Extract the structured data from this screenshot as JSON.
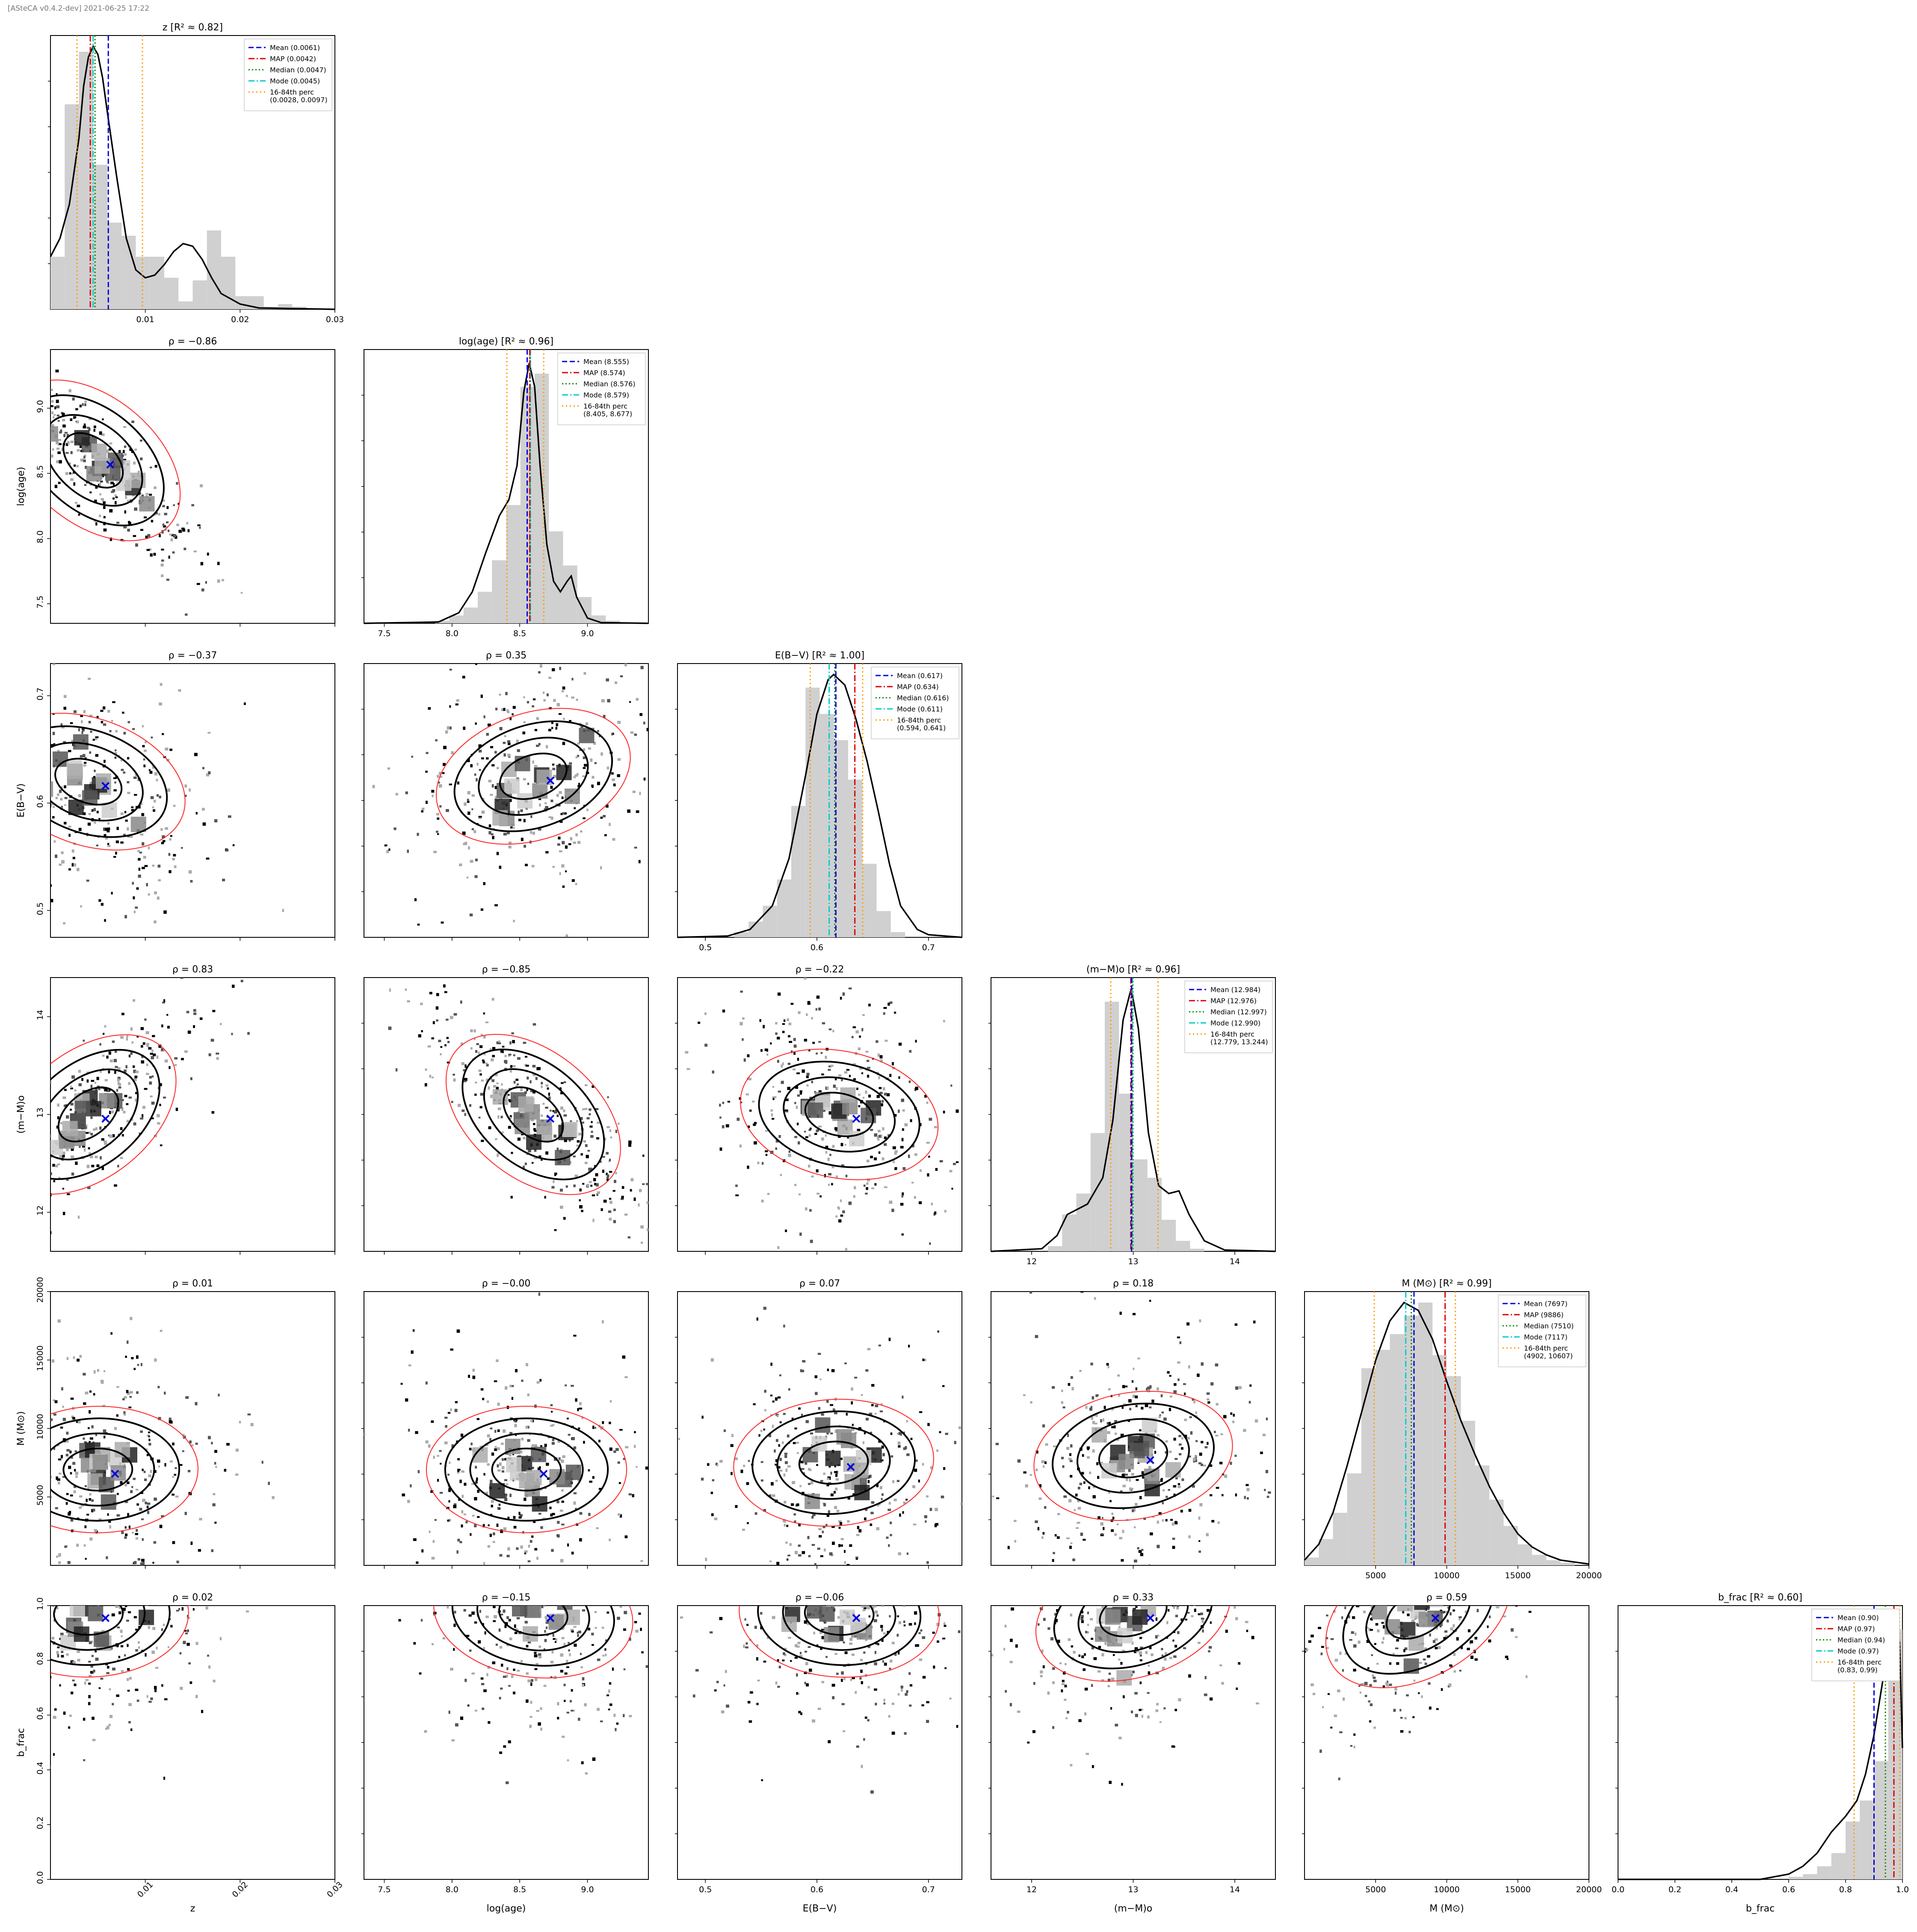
{
  "header": {
    "text": "[ASteCA v0.4.2-dev] 2021-06-25 17:22"
  },
  "chart_data": {
    "type": "corner",
    "parameters": [
      {
        "key": "z",
        "diag_title": "z [R² ≈ 0.82]",
        "axis_label": "z",
        "range": [
          0.0,
          0.03
        ],
        "ticks": [
          0.01,
          0.02,
          0.03
        ],
        "tick_labels": [
          "0.01",
          "0.02",
          "0.03"
        ],
        "stats": {
          "mean": 0.0061,
          "map": 0.0042,
          "median": 0.0047,
          "mode": 0.0045,
          "p16": 0.0028,
          "p84": 0.0097
        },
        "legend": [
          "Mean (0.0061)",
          "MAP (0.0042)",
          "Median (0.0047)",
          "Mode (0.0045)",
          "16-84th perc",
          "(0.0028, 0.0097)"
        ],
        "histogram": [
          0.2,
          0.78,
          0.98,
          0.55,
          0.33,
          0.28,
          0.2,
          0.2,
          0.12,
          0.03,
          0.11,
          0.3,
          0.2,
          0.05,
          0.05,
          0.01,
          0.02,
          0.01,
          0.0,
          0.0
        ],
        "kde": [
          [
            0.0,
            0.2
          ],
          [
            0.001,
            0.27
          ],
          [
            0.002,
            0.4
          ],
          [
            0.003,
            0.65
          ],
          [
            0.0035,
            0.85
          ],
          [
            0.004,
            0.96
          ],
          [
            0.0045,
            1.0
          ],
          [
            0.005,
            0.97
          ],
          [
            0.0055,
            0.88
          ],
          [
            0.006,
            0.75
          ],
          [
            0.007,
            0.5
          ],
          [
            0.008,
            0.27
          ],
          [
            0.009,
            0.15
          ],
          [
            0.01,
            0.12
          ],
          [
            0.011,
            0.13
          ],
          [
            0.012,
            0.17
          ],
          [
            0.013,
            0.22
          ],
          [
            0.014,
            0.25
          ],
          [
            0.015,
            0.24
          ],
          [
            0.016,
            0.19
          ],
          [
            0.017,
            0.12
          ],
          [
            0.018,
            0.06
          ],
          [
            0.02,
            0.02
          ],
          [
            0.022,
            0.005
          ],
          [
            0.03,
            0.0
          ]
        ]
      },
      {
        "key": "logage",
        "diag_title": "log(age) [R² ≈ 0.96]",
        "axis_label": "log(age)",
        "range": [
          7.35,
          9.45
        ],
        "ticks": [
          7.5,
          8.0,
          8.5,
          9.0
        ],
        "tick_labels": [
          "7.5",
          "8.0",
          "8.5",
          "9.0"
        ],
        "stats": {
          "mean": 8.555,
          "map": 8.574,
          "median": 8.576,
          "mode": 8.579,
          "p16": 8.405,
          "p84": 8.677
        },
        "legend": [
          "Mean (8.555)",
          "MAP (8.574)",
          "Median (8.576)",
          "Mode (8.579)",
          "16-84th perc",
          "(8.405, 8.677)"
        ],
        "histogram": [
          0.0,
          0.0,
          0.0,
          0.0,
          0.0,
          0.01,
          0.03,
          0.06,
          0.12,
          0.24,
          0.45,
          0.9,
          0.95,
          0.35,
          0.22,
          0.1,
          0.03,
          0.01,
          0.0,
          0.0
        ],
        "kde": [
          [
            7.35,
            0.0
          ],
          [
            7.9,
            0.005
          ],
          [
            8.05,
            0.04
          ],
          [
            8.15,
            0.12
          ],
          [
            8.25,
            0.27
          ],
          [
            8.35,
            0.41
          ],
          [
            8.42,
            0.47
          ],
          [
            8.48,
            0.6
          ],
          [
            8.53,
            0.88
          ],
          [
            8.57,
            0.99
          ],
          [
            8.61,
            0.9
          ],
          [
            8.65,
            0.6
          ],
          [
            8.7,
            0.3
          ],
          [
            8.75,
            0.16
          ],
          [
            8.8,
            0.12
          ],
          [
            8.85,
            0.16
          ],
          [
            8.88,
            0.18
          ],
          [
            8.92,
            0.1
          ],
          [
            9.0,
            0.02
          ],
          [
            9.1,
            0.003
          ],
          [
            9.45,
            0.0
          ]
        ]
      },
      {
        "key": "ebv",
        "diag_title": "E(B−V) [R² ≈ 1.00]",
        "axis_label": "E(B−V)",
        "range": [
          0.475,
          0.73
        ],
        "ticks": [
          0.5,
          0.6,
          0.7
        ],
        "tick_labels": [
          "0.5",
          "0.6",
          "0.7"
        ],
        "stats": {
          "mean": 0.617,
          "map": 0.634,
          "median": 0.616,
          "mode": 0.611,
          "p16": 0.594,
          "p84": 0.641
        },
        "legend": [
          "Mean (0.617)",
          "MAP (0.634)",
          "Median (0.616)",
          "Mode (0.611)",
          "16-84th perc",
          "(0.594, 0.641)"
        ],
        "histogram": [
          0.0,
          0.0,
          0.0,
          0.0,
          0.02,
          0.06,
          0.12,
          0.22,
          0.5,
          0.95,
          0.85,
          0.75,
          0.6,
          0.28,
          0.1,
          0.02,
          0.0,
          0.0,
          0.0,
          0.0
        ],
        "kde": [
          [
            0.475,
            0.0
          ],
          [
            0.52,
            0.005
          ],
          [
            0.54,
            0.03
          ],
          [
            0.56,
            0.12
          ],
          [
            0.575,
            0.3
          ],
          [
            0.59,
            0.62
          ],
          [
            0.6,
            0.85
          ],
          [
            0.61,
            0.98
          ],
          [
            0.615,
            1.0
          ],
          [
            0.625,
            0.96
          ],
          [
            0.635,
            0.83
          ],
          [
            0.645,
            0.67
          ],
          [
            0.655,
            0.48
          ],
          [
            0.665,
            0.28
          ],
          [
            0.675,
            0.12
          ],
          [
            0.69,
            0.03
          ],
          [
            0.7,
            0.01
          ],
          [
            0.73,
            0.0
          ]
        ]
      },
      {
        "key": "dm",
        "diag_title": "(m−M)o [R² ≈ 0.96]",
        "axis_label": "(m−M)o",
        "range": [
          11.6,
          14.4
        ],
        "ticks": [
          12,
          13,
          14
        ],
        "tick_labels": [
          "12",
          "13",
          "14"
        ],
        "stats": {
          "mean": 12.984,
          "map": 12.976,
          "median": 12.997,
          "mode": 12.99,
          "p16": 12.779,
          "p84": 13.244
        },
        "legend": [
          "Mean (12.984)",
          "MAP (12.976)",
          "Median (12.997)",
          "Mode (12.990)",
          "16-84th perc",
          "(12.779, 13.244)"
        ],
        "histogram": [
          0.0,
          0.0,
          0.0,
          0.0,
          0.02,
          0.14,
          0.22,
          0.45,
          0.95,
          0.6,
          0.35,
          0.28,
          0.12,
          0.04,
          0.01,
          0.0,
          0.0,
          0.0,
          0.0,
          0.0
        ],
        "kde": [
          [
            11.6,
            0.0
          ],
          [
            12.1,
            0.01
          ],
          [
            12.25,
            0.06
          ],
          [
            12.35,
            0.14
          ],
          [
            12.45,
            0.16
          ],
          [
            12.55,
            0.18
          ],
          [
            12.7,
            0.28
          ],
          [
            12.8,
            0.5
          ],
          [
            12.9,
            0.88
          ],
          [
            12.98,
            1.0
          ],
          [
            13.05,
            0.85
          ],
          [
            13.15,
            0.45
          ],
          [
            13.25,
            0.25
          ],
          [
            13.35,
            0.22
          ],
          [
            13.45,
            0.23
          ],
          [
            13.55,
            0.14
          ],
          [
            13.7,
            0.04
          ],
          [
            13.9,
            0.005
          ],
          [
            14.4,
            0.0
          ]
        ]
      },
      {
        "key": "mass",
        "diag_title": "M (M⊙) [R² ≈ 0.99]",
        "axis_label": "M (M⊙)",
        "range": [
          0,
          20000
        ],
        "ticks": [
          5000,
          10000,
          15000,
          20000
        ],
        "tick_labels": [
          "5000",
          "10000",
          "15000",
          "20000"
        ],
        "stats": {
          "mean": 7697,
          "map": 9886,
          "median": 7510,
          "mode": 7117,
          "p16": 4902,
          "p84": 10607
        },
        "legend": [
          "Mean (7697)",
          "MAP (9886)",
          "Median (7510)",
          "Mode (7117)",
          "16-84th perc",
          "(4902, 10607)"
        ],
        "histogram": [
          0.03,
          0.1,
          0.2,
          0.35,
          0.75,
          0.82,
          0.88,
          0.95,
          1.0,
          0.8,
          0.72,
          0.55,
          0.38,
          0.25,
          0.15,
          0.08,
          0.04,
          0.02,
          0.01,
          0.0
        ],
        "kde": [
          [
            0,
            0.02
          ],
          [
            1000,
            0.08
          ],
          [
            2000,
            0.2
          ],
          [
            3000,
            0.38
          ],
          [
            4000,
            0.58
          ],
          [
            5000,
            0.78
          ],
          [
            6000,
            0.93
          ],
          [
            7000,
            1.0
          ],
          [
            8000,
            0.97
          ],
          [
            9000,
            0.86
          ],
          [
            10000,
            0.7
          ],
          [
            11000,
            0.55
          ],
          [
            12000,
            0.42
          ],
          [
            13000,
            0.3
          ],
          [
            14000,
            0.2
          ],
          [
            15000,
            0.12
          ],
          [
            16000,
            0.07
          ],
          [
            17000,
            0.04
          ],
          [
            18000,
            0.02
          ],
          [
            20000,
            0.005
          ]
        ]
      },
      {
        "key": "bfrac",
        "diag_title": "b_frac [R² ≈ 0.60]",
        "axis_label": "b_frac",
        "range": [
          0.0,
          1.0
        ],
        "ticks": [
          0.0,
          0.2,
          0.4,
          0.6,
          0.8,
          1.0
        ],
        "tick_labels": [
          "0.0",
          "0.2",
          "0.4",
          "0.6",
          "0.8",
          "1.0"
        ],
        "stats": {
          "mean": 0.9,
          "map": 0.97,
          "median": 0.94,
          "mode": 0.97,
          "p16": 0.83,
          "p84": 0.99
        },
        "legend": [
          "Mean (0.90)",
          "MAP (0.97)",
          "Median (0.94)",
          "Mode (0.97)",
          "16-84th perc",
          "(0.83, 0.99)"
        ],
        "histogram": [
          0.0,
          0.0,
          0.0,
          0.0,
          0.0,
          0.0,
          0.0,
          0.0,
          0.0,
          0.0,
          0.0,
          0.0,
          0.01,
          0.02,
          0.05,
          0.1,
          0.22,
          0.3,
          0.45,
          0.95
        ],
        "kde": [
          [
            0.0,
            0.0
          ],
          [
            0.5,
            0.0
          ],
          [
            0.6,
            0.02
          ],
          [
            0.65,
            0.05
          ],
          [
            0.7,
            0.1
          ],
          [
            0.75,
            0.18
          ],
          [
            0.8,
            0.24
          ],
          [
            0.84,
            0.3
          ],
          [
            0.87,
            0.4
          ],
          [
            0.9,
            0.55
          ],
          [
            0.93,
            0.75
          ],
          [
            0.96,
            0.95
          ],
          [
            0.975,
            1.0
          ],
          [
            0.99,
            0.9
          ],
          [
            1.0,
            0.5
          ]
        ]
      }
    ],
    "correlations": [
      {
        "row": 1,
        "col": 0,
        "title": "ρ = −0.86",
        "rho": -0.86,
        "peak": [
          0.0045,
          8.6
        ]
      },
      {
        "row": 2,
        "col": 0,
        "title": "ρ = −0.37",
        "rho": -0.37,
        "peak": [
          0.004,
          0.62
        ]
      },
      {
        "row": 2,
        "col": 1,
        "title": "ρ = 0.35",
        "rho": 0.35,
        "peak": [
          8.6,
          0.625
        ]
      },
      {
        "row": 3,
        "col": 0,
        "title": "ρ = 0.83",
        "rho": 0.83,
        "peak": [
          0.004,
          13.0
        ]
      },
      {
        "row": 3,
        "col": 1,
        "title": "ρ = −0.85",
        "rho": -0.85,
        "peak": [
          8.6,
          13.0
        ]
      },
      {
        "row": 3,
        "col": 2,
        "title": "ρ = −0.22",
        "rho": -0.22,
        "peak": [
          0.62,
          13.0
        ]
      },
      {
        "row": 4,
        "col": 0,
        "title": "ρ = 0.01",
        "rho": 0.01,
        "peak": [
          0.005,
          7000
        ]
      },
      {
        "row": 4,
        "col": 1,
        "title": "ρ = −0.00",
        "rho": -0.0,
        "peak": [
          8.55,
          7000
        ]
      },
      {
        "row": 4,
        "col": 2,
        "title": "ρ = 0.07",
        "rho": 0.07,
        "peak": [
          0.615,
          7500
        ]
      },
      {
        "row": 4,
        "col": 3,
        "title": "ρ = 0.18",
        "rho": 0.18,
        "peak": [
          13.0,
          8000
        ]
      },
      {
        "row": 5,
        "col": 0,
        "title": "ρ = 0.02",
        "rho": 0.02,
        "peak": [
          0.004,
          0.97
        ]
      },
      {
        "row": 5,
        "col": 1,
        "title": "ρ = −0.15",
        "rho": -0.15,
        "peak": [
          8.6,
          0.97
        ]
      },
      {
        "row": 5,
        "col": 2,
        "title": "ρ = −0.06",
        "rho": -0.06,
        "peak": [
          0.62,
          0.97
        ]
      },
      {
        "row": 5,
        "col": 3,
        "title": "ρ = 0.33",
        "rho": 0.33,
        "peak": [
          13.0,
          0.97
        ]
      },
      {
        "row": 5,
        "col": 4,
        "title": "ρ = 0.59",
        "rho": 0.59,
        "peak": [
          8000,
          0.97
        ]
      }
    ]
  },
  "colors": {
    "mean": "#0000dd",
    "map": "#dd0000",
    "median": "#008800",
    "mode": "#00cccc",
    "perc": "#ff9900",
    "hist": "#d0d0d0",
    "kde": "#000000",
    "ellipse": "#ff2222"
  }
}
